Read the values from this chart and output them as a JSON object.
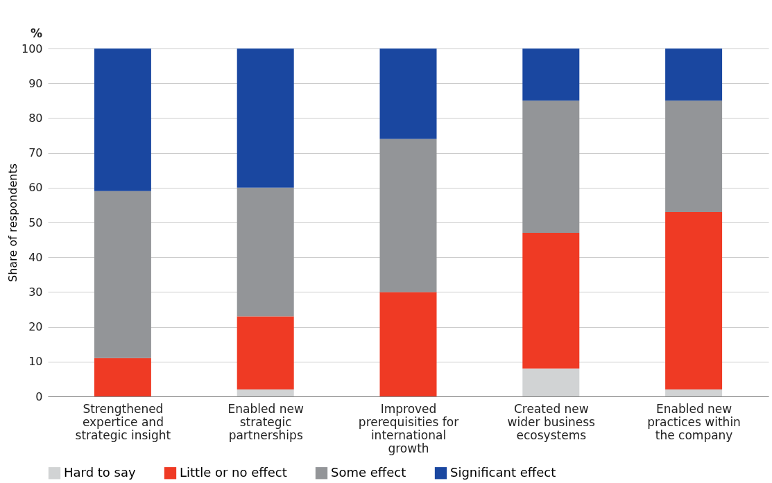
{
  "chart_data": {
    "type": "bar",
    "stacked": true,
    "ylabel": "Share of respondents",
    "annotations": [
      "%"
    ],
    "categories": [
      "Strengthened\nexpertice and\nstrategic insight",
      "Enabled new\nstrategic\npartnerships",
      "Improved\nprerequisities for\ninternational\ngrowth",
      "Created new\nwider business\necosystems",
      "Enabled new\npractices within\nthe company"
    ],
    "series": [
      {
        "name": "Hard to say",
        "color": "#d1d3d4",
        "values": [
          0,
          2,
          0,
          8,
          2
        ]
      },
      {
        "name": "Little or no effect",
        "color": "#ef3a24",
        "values": [
          11,
          21,
          30,
          39,
          51
        ]
      },
      {
        "name": "Some effect",
        "color": "#939598",
        "values": [
          48,
          37,
          44,
          38,
          32
        ]
      },
      {
        "name": "Significant effect",
        "color": "#1a47a0",
        "values": [
          41,
          40,
          26,
          15,
          15
        ]
      }
    ],
    "ylim": [
      0,
      100
    ],
    "yticks": [
      0,
      10,
      20,
      30,
      40,
      50,
      60,
      70,
      80,
      90,
      100
    ],
    "grid": "y",
    "legend": "bottom"
  }
}
